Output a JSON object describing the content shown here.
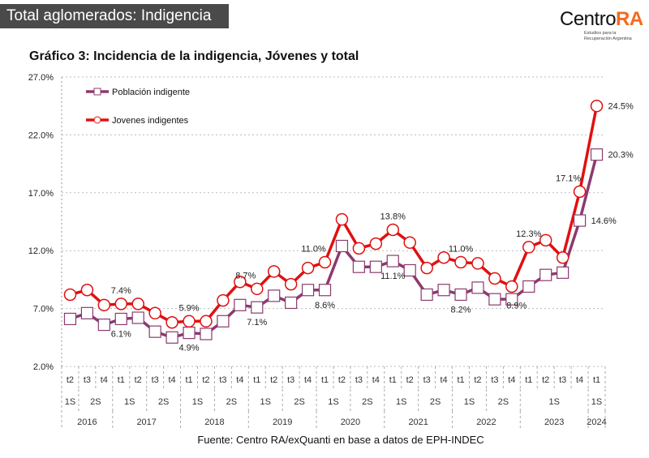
{
  "header": {
    "title": "Total aglomerados: Indigencia"
  },
  "logo": {
    "name_a": "Centro",
    "name_b": "RA",
    "tagline_1": "Estudios para la",
    "tagline_2": "Recuperación Argentina"
  },
  "source": "Fuente: Centro RA/exQuanti en base a datos de EPH-INDEC",
  "colors": {
    "poblacion": "#8b3a6e",
    "jovenes": "#e01010",
    "header_bg": "#4a4a4a",
    "logo_accent": "#f26b1d"
  },
  "chart_data": {
    "type": "line",
    "title": "Gráfico 3: Incidencia de la indigencia, Jóvenes y total",
    "ylim": [
      2.0,
      27.0
    ],
    "yticks": [
      "2.0%",
      "7.0%",
      "12.0%",
      "17.0%",
      "22.0%",
      "27.0%"
    ],
    "grid": true,
    "legend_position": "top-left",
    "x_quarters": [
      "t2",
      "t3",
      "t4",
      "t1",
      "t2",
      "t3",
      "t4",
      "t1",
      "t2",
      "t3",
      "t4",
      "t1",
      "t2",
      "t3",
      "t4",
      "t1",
      "t2",
      "t3",
      "t4",
      "t1",
      "t2",
      "t3",
      "t4",
      "t1",
      "t2",
      "t3",
      "t4",
      "t1",
      "t2",
      "t3",
      "t4",
      "t1"
    ],
    "x_semesters": [
      {
        "label": "1S",
        "count": 1
      },
      {
        "label": "2S",
        "count": 2
      },
      {
        "label": "1S",
        "count": 2
      },
      {
        "label": "2S",
        "count": 2
      },
      {
        "label": "1S",
        "count": 2
      },
      {
        "label": "2S",
        "count": 2
      },
      {
        "label": "1S",
        "count": 2
      },
      {
        "label": "2S",
        "count": 2
      },
      {
        "label": "1S",
        "count": 2
      },
      {
        "label": "2S",
        "count": 2
      },
      {
        "label": "1S",
        "count": 2
      },
      {
        "label": "2S",
        "count": 2
      },
      {
        "label": "1S",
        "count": 2
      },
      {
        "label": "2S",
        "count": 2
      },
      {
        "label": "1S",
        "count": 4
      },
      {
        "label": "1S",
        "count": 1
      }
    ],
    "x_years": [
      {
        "label": "2016",
        "count": 3
      },
      {
        "label": "2017",
        "count": 4
      },
      {
        "label": "2018",
        "count": 4
      },
      {
        "label": "2019",
        "count": 4
      },
      {
        "label": "2020",
        "count": 4
      },
      {
        "label": "2021",
        "count": 4
      },
      {
        "label": "2022",
        "count": 4
      },
      {
        "label": "2023",
        "count": 4
      },
      {
        "label": "2024",
        "count": 1
      }
    ],
    "series": [
      {
        "name": "Población indigente",
        "marker": "square",
        "values": [
          6.1,
          6.6,
          5.6,
          6.1,
          6.2,
          5.0,
          4.5,
          4.9,
          4.8,
          5.9,
          7.3,
          7.1,
          8.1,
          7.5,
          8.6,
          8.6,
          12.4,
          10.6,
          10.6,
          11.1,
          10.3,
          8.2,
          8.6,
          8.2,
          8.8,
          7.8,
          7.8,
          8.9,
          9.9,
          10.1,
          14.6,
          20.3
        ]
      },
      {
        "name": "Jovenes indigentes",
        "marker": "circle",
        "values": [
          8.2,
          8.6,
          7.3,
          7.4,
          7.4,
          6.6,
          5.8,
          5.9,
          5.9,
          7.7,
          9.3,
          8.7,
          10.2,
          9.1,
          10.5,
          11.0,
          14.7,
          12.2,
          12.6,
          13.8,
          12.7,
          10.5,
          11.4,
          11.0,
          10.9,
          9.6,
          8.9,
          12.3,
          12.9,
          11.4,
          17.1,
          24.5
        ]
      }
    ],
    "data_labels": [
      {
        "series": 1,
        "index": 3,
        "text": "7.4%"
      },
      {
        "series": 0,
        "index": 3,
        "text": "6.1%"
      },
      {
        "series": 1,
        "index": 7,
        "text": "5.9%"
      },
      {
        "series": 0,
        "index": 7,
        "text": "4.9%"
      },
      {
        "series": 1,
        "index": 11,
        "text": "8.7%"
      },
      {
        "series": 0,
        "index": 11,
        "text": "7.1%"
      },
      {
        "series": 1,
        "index": 15,
        "text": "11.0%"
      },
      {
        "series": 0,
        "index": 15,
        "text": "8.6%"
      },
      {
        "series": 1,
        "index": 19,
        "text": "13.8%"
      },
      {
        "series": 0,
        "index": 19,
        "text": "11.1%"
      },
      {
        "series": 1,
        "index": 23,
        "text": "11.0%"
      },
      {
        "series": 0,
        "index": 23,
        "text": "8.2%"
      },
      {
        "series": 1,
        "index": 26,
        "text": "8.9%"
      },
      {
        "series": 1,
        "index": 27,
        "text": "12.3%"
      },
      {
        "series": 1,
        "index": 30,
        "text": "17.1%"
      },
      {
        "series": 0,
        "index": 30,
        "text": "14.6%"
      },
      {
        "series": 1,
        "index": 31,
        "text": "24.5%"
      },
      {
        "series": 0,
        "index": 31,
        "text": "20.3%"
      }
    ]
  }
}
